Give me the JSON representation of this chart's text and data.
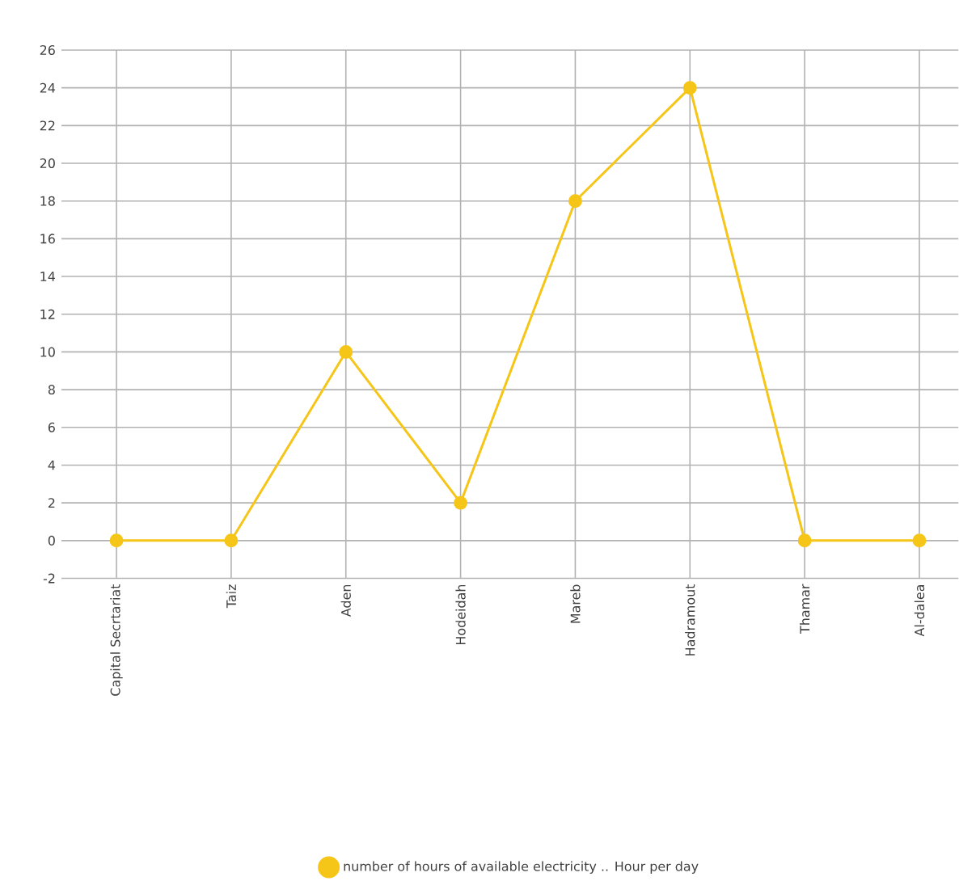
{
  "chart_data": {
    "type": "line",
    "categories": [
      "Capital Secrtariat",
      "Taiz",
      "Aden",
      "Hodeidah",
      "Mareb",
      "Hadramout",
      "Thamar",
      "Al-dalea"
    ],
    "series": [
      {
        "name": "number of hours of available electricity .. Hour per day",
        "color": "#f5c518",
        "values": [
          0,
          0,
          10,
          2,
          18,
          24,
          0,
          0
        ]
      }
    ],
    "ylim": [
      -2,
      26
    ],
    "yticks": [
      -2,
      0,
      2,
      4,
      6,
      8,
      10,
      12,
      14,
      16,
      18,
      20,
      22,
      24,
      26
    ],
    "grid": true,
    "legend": "bottom",
    "marker": "circle",
    "line_style": "solid"
  }
}
